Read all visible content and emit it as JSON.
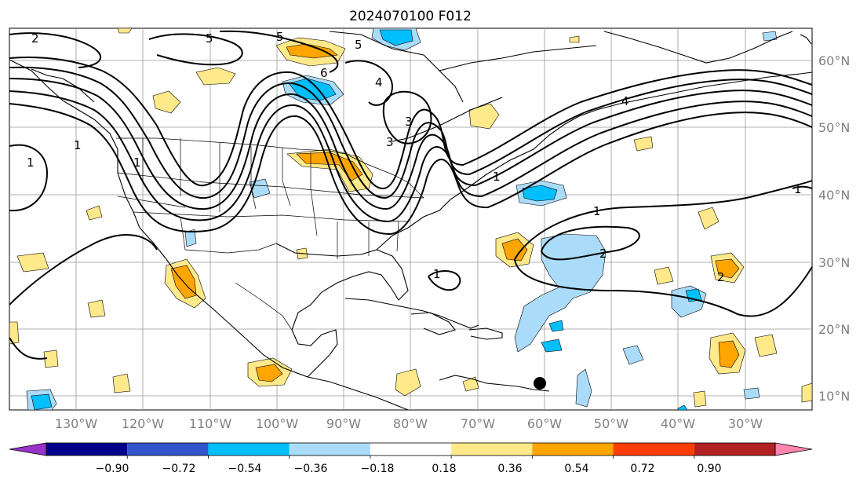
{
  "map": {
    "title": "2024070100 F012",
    "lat_labels": [
      "60°N",
      "50°N",
      "40°N",
      "30°N",
      "20°N",
      "10°N"
    ],
    "lon_labels": [
      "130°W",
      "120°W",
      "110°W",
      "100°W",
      "90°W",
      "80°W",
      "70°W",
      "60°W",
      "50°W",
      "40°W",
      "30°W"
    ],
    "contour_labels": [
      "2",
      "5",
      "5",
      "5",
      "6",
      "4",
      "3",
      "4",
      "3",
      "1",
      "1",
      "1",
      "1",
      "1",
      "2",
      "2",
      "1",
      "1"
    ]
  },
  "colorbar": {
    "ticks": [
      "−0.90",
      "−0.72",
      "−0.54",
      "−0.36",
      "−0.18",
      "0.18",
      "0.36",
      "0.54",
      "0.72",
      "0.90"
    ],
    "colors": [
      "#9933cc",
      "#00008b",
      "#3355cc",
      "#00bfff",
      "#aadcf9",
      "#ffffff",
      "#ffe98a",
      "#ffa500",
      "#ff3d00",
      "#b22222",
      "#ff85b0"
    ]
  }
}
